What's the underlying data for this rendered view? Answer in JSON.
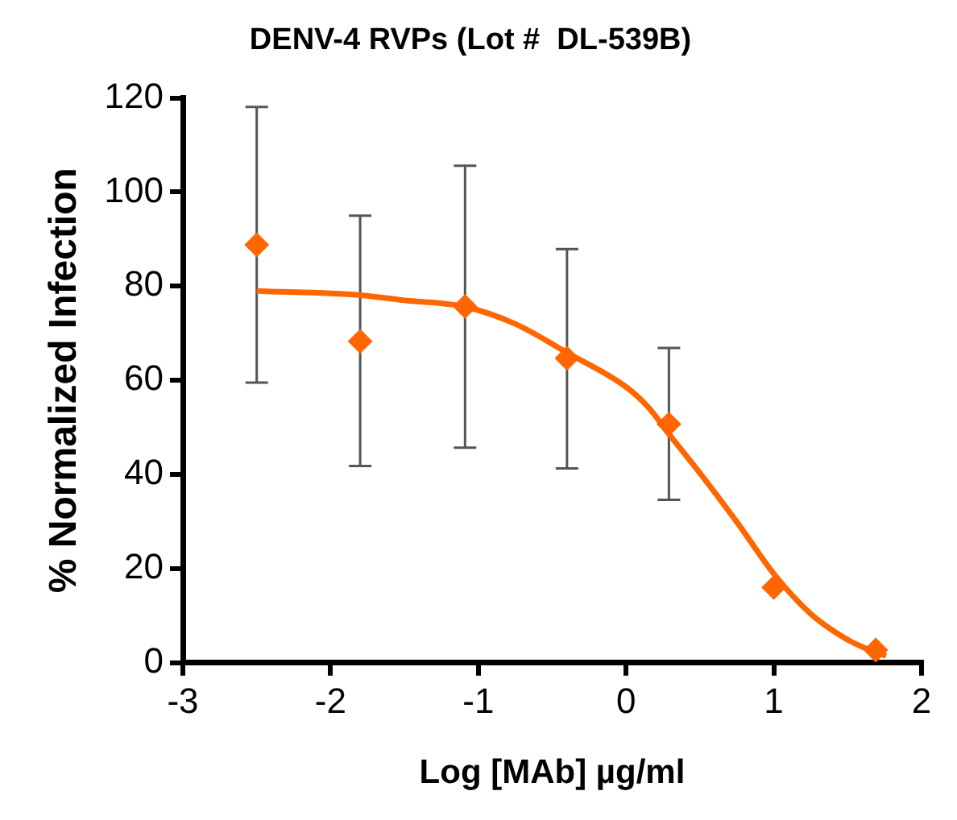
{
  "chart_data": {
    "type": "scatter",
    "title": "DENV-4 RVPs (Lot #  DL-539B)",
    "xlabel": "Log [MAb] µg/ml",
    "ylabel": "% Normalized Infection",
    "xlim": [
      -3,
      2
    ],
    "xticks": [
      -3,
      -2,
      -1,
      0,
      1,
      2
    ],
    "ylim": [
      0,
      120
    ],
    "yticks": [
      0,
      20,
      40,
      60,
      80,
      100,
      120
    ],
    "grid": false,
    "legend": false,
    "series": [
      {
        "color": "#ff6600",
        "marker": "diamond",
        "x": [
          -2.5,
          -1.8,
          -1.09,
          -0.4,
          0.29,
          1.0,
          1.69
        ],
        "values": [
          88.8,
          68.3,
          75.7,
          64.7,
          50.7,
          16.0,
          2.7
        ],
        "errors": [
          [
            59.5,
            118.1
          ],
          [
            41.8,
            95.0
          ],
          [
            45.7,
            105.6
          ],
          [
            41.3,
            87.9
          ],
          [
            34.6,
            66.9
          ],
          null,
          null
        ]
      },
      {
        "type": "line",
        "color": "#ff6600",
        "marker": "none",
        "line_style": "solid",
        "x": [
          -2.5,
          -1.8,
          -1.5,
          -1.1,
          -0.75,
          -0.4,
          0,
          0.15,
          0.3,
          0.5,
          0.75,
          1.0,
          1.25,
          1.5,
          1.7,
          1.76
        ],
        "values": [
          79.0,
          78.1,
          77.0,
          75.7,
          72.0,
          65.9,
          58.6,
          54.3,
          48.2,
          40.3,
          29.9,
          18.9,
          10.4,
          4.9,
          2.1,
          1.5
        ]
      }
    ]
  }
}
